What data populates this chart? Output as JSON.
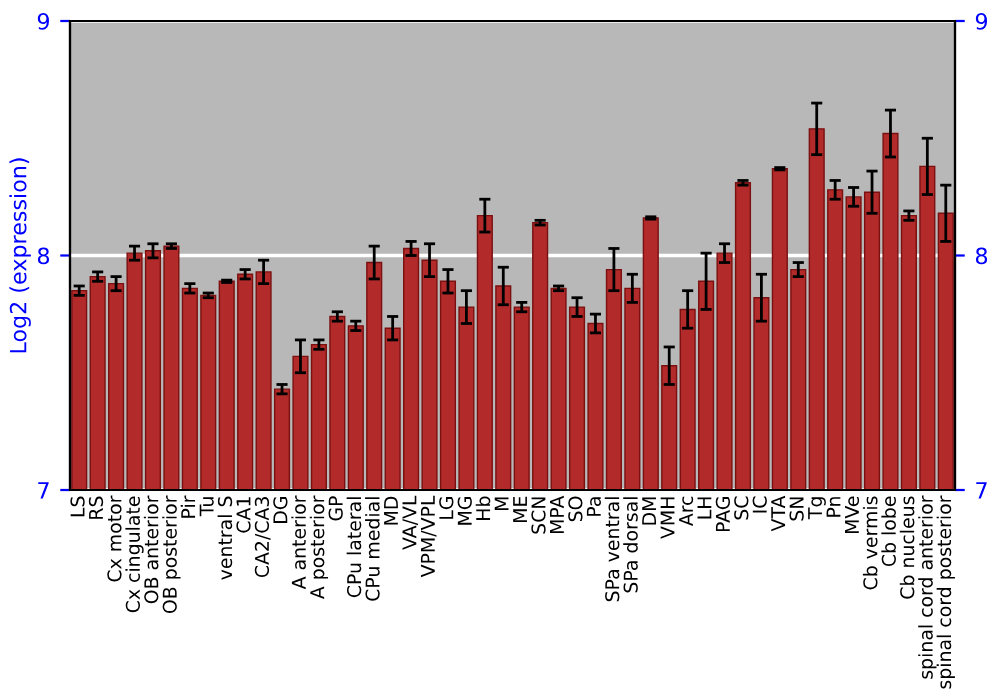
{
  "chart_data": {
    "type": "bar",
    "ylabel": "Log2 (expression)",
    "categories": [
      "LS",
      "RS",
      "Cx motor",
      "Cx cingulate",
      "OB anterior",
      "OB posterior",
      "Pir",
      "Tu",
      "ventral S",
      "CA1",
      "CA2/CA3",
      "DG",
      "A anterior",
      "A posterior",
      "GP",
      "CPu lateral",
      "CPu medial",
      "MD",
      "VA/VL",
      "VPM/VPL",
      "LG",
      "MG",
      "Hb",
      "M",
      "ME",
      "SCN",
      "MPA",
      "SO",
      "Pa",
      "SPa ventral",
      "SPa dorsal",
      "DM",
      "VMH",
      "Arc",
      "LH",
      "PAG",
      "SC",
      "IC",
      "VTA",
      "SN",
      "Tg",
      "Pn",
      "MVe",
      "Cb vermis",
      "Cb lobe",
      "Cb nucleus",
      "spinal cord anterior",
      "spinal cord posterior"
    ],
    "values": [
      7.85,
      7.91,
      7.88,
      8.01,
      8.02,
      8.04,
      7.86,
      7.83,
      7.89,
      7.92,
      7.93,
      7.43,
      7.57,
      7.62,
      7.74,
      7.7,
      7.97,
      7.69,
      8.03,
      7.98,
      7.89,
      7.78,
      8.17,
      7.87,
      7.78,
      8.14,
      7.86,
      7.78,
      7.71,
      7.94,
      7.86,
      8.16,
      7.53,
      7.77,
      7.89,
      8.01,
      8.31,
      7.82,
      8.37,
      7.94,
      8.54,
      8.28,
      8.25,
      8.27,
      8.52,
      8.17,
      8.38,
      8.18
    ],
    "errors": [
      0.02,
      0.02,
      0.03,
      0.03,
      0.03,
      0.01,
      0.02,
      0.01,
      0.005,
      0.02,
      0.05,
      0.02,
      0.07,
      0.02,
      0.02,
      0.02,
      0.07,
      0.05,
      0.03,
      0.07,
      0.05,
      0.07,
      0.07,
      0.08,
      0.02,
      0.01,
      0.01,
      0.04,
      0.04,
      0.09,
      0.06,
      0.005,
      0.08,
      0.08,
      0.12,
      0.04,
      0.01,
      0.1,
      0.005,
      0.03,
      0.11,
      0.04,
      0.04,
      0.09,
      0.1,
      0.02,
      0.12,
      0.12
    ],
    "color": "#b22a2a",
    "ylim": [
      7,
      9
    ],
    "yticks": [
      7,
      8,
      9
    ],
    "y2lim": [
      7,
      9
    ],
    "y2ticks": [
      7,
      8,
      9
    ],
    "grid": "y"
  }
}
